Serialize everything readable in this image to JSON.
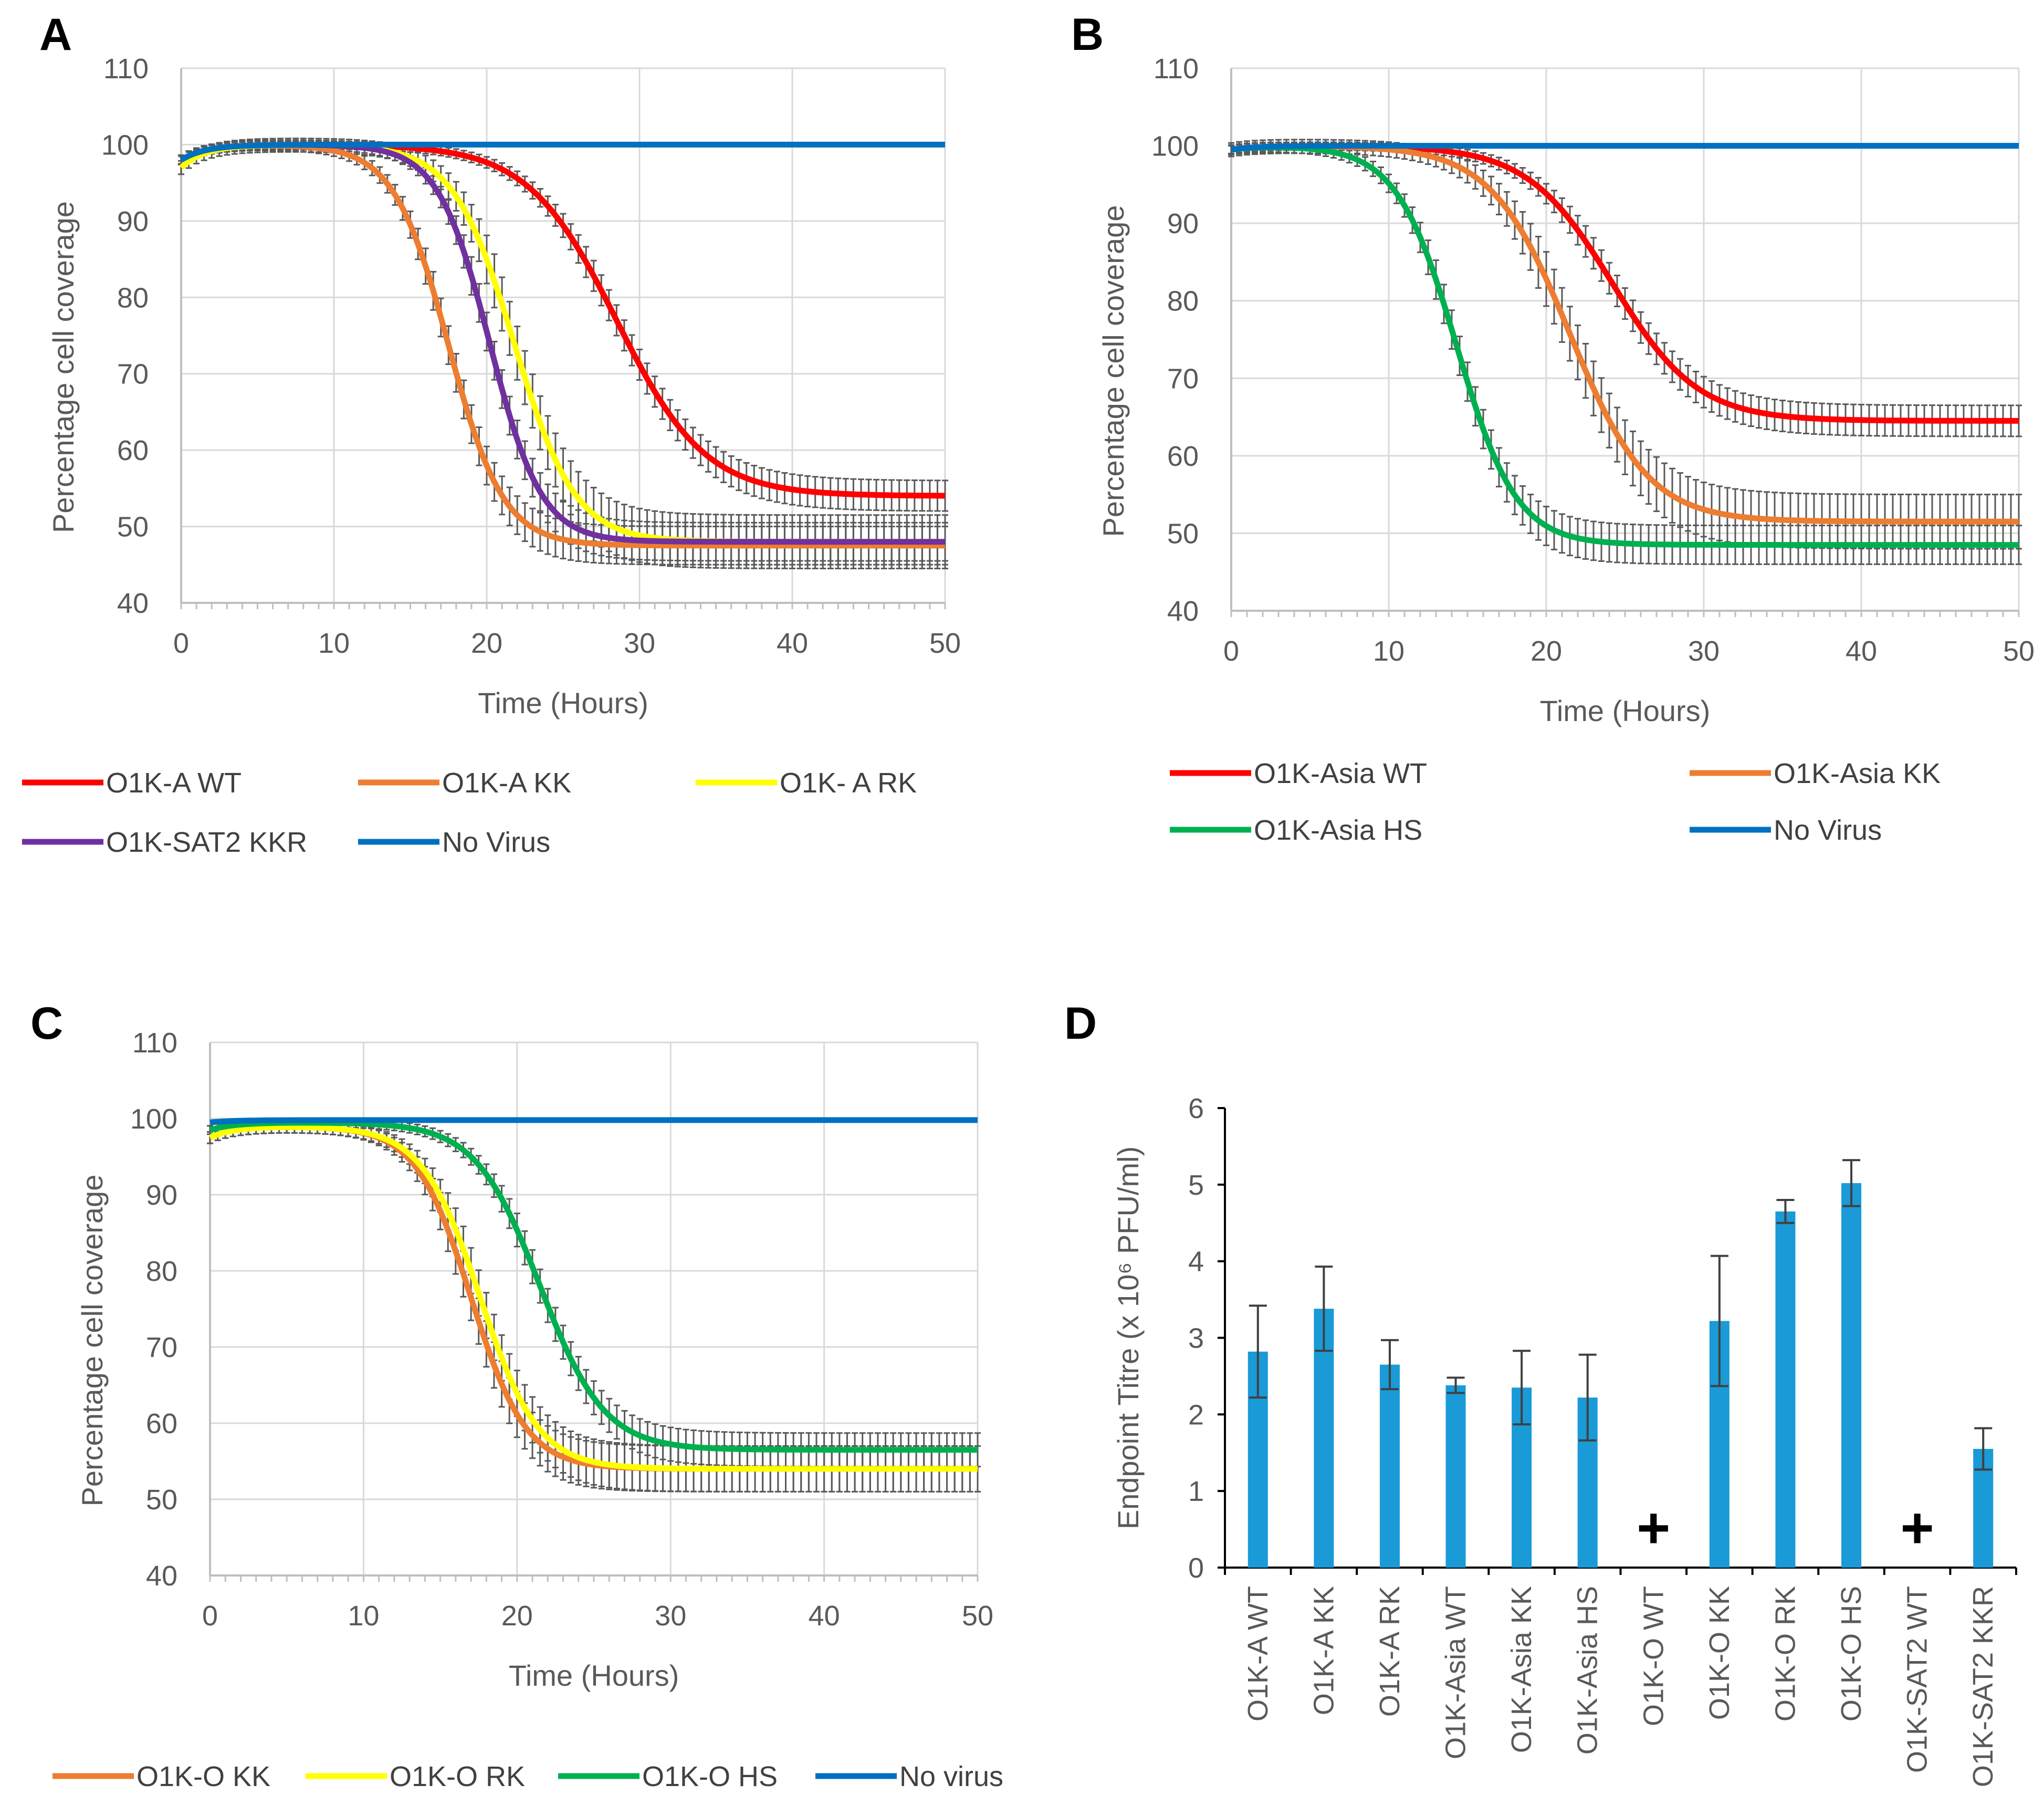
{
  "chart_data": [
    {
      "panel": "A",
      "type": "line",
      "xlabel": "Time  (Hours)",
      "ylabel": "Percentage cell coverage",
      "xlim": [
        0,
        50
      ],
      "ylim": [
        40,
        110
      ],
      "xticks": [
        0,
        10,
        20,
        30,
        40,
        50
      ],
      "yticks": [
        40,
        50,
        60,
        70,
        80,
        90,
        100,
        110
      ],
      "grid": true,
      "legend_position": "bottom",
      "series": [
        {
          "name": "O1K-A WT",
          "color": "#ff0000",
          "start": 98,
          "plateau": 100,
          "final": 54,
          "midpoint": 28.5,
          "width": 2.9,
          "err": 2.0
        },
        {
          "name": "O1K-A KK",
          "color": "#ed7d31",
          "start": 98,
          "plateau": 100,
          "final": 47.5,
          "midpoint": 17.5,
          "width": 1.8,
          "err": 2.5
        },
        {
          "name": "O1K- A RK",
          "color": "#ffff00",
          "start": 97,
          "plateau": 100,
          "final": 48,
          "midpoint": 21.8,
          "width": 2.0,
          "err": 3.5
        },
        {
          "name": "O1K-SAT2 KKR",
          "color": "#7030a0",
          "start": 98,
          "plateau": 100,
          "final": 48,
          "midpoint": 20.2,
          "width": 1.7,
          "err": 2.5
        },
        {
          "name": "No Virus",
          "color": "#0070c0",
          "start": 98,
          "plateau": 100,
          "final": 100,
          "midpoint": 25,
          "width": 3,
          "err": 0
        }
      ]
    },
    {
      "panel": "B",
      "type": "line",
      "xlabel": "Time  (Hours)",
      "ylabel": "Percentage cell coverage",
      "xlim": [
        0,
        50
      ],
      "ylim": [
        40,
        110
      ],
      "xticks": [
        0,
        10,
        20,
        30,
        40,
        50
      ],
      "yticks": [
        40,
        50,
        60,
        70,
        80,
        90,
        100,
        110
      ],
      "grid": true,
      "legend_position": "bottom",
      "series": [
        {
          "name": "O1K-Asia WT",
          "color": "#ff0000",
          "start": 99.5,
          "plateau": 100,
          "final": 64.5,
          "midpoint": 24.2,
          "width": 2.7,
          "err": 2.0
        },
        {
          "name": "O1K-Asia KK",
          "color": "#ed7d31",
          "start": 99.5,
          "plateau": 100,
          "final": 51.5,
          "midpoint": 21.5,
          "width": 2.5,
          "err": 3.5
        },
        {
          "name": "O1K-Asia HS",
          "color": "#00b050",
          "start": 99.5,
          "plateau": 100,
          "final": 48.5,
          "midpoint": 14.3,
          "width": 1.9,
          "err": 2.5
        },
        {
          "name": "No Virus",
          "color": "#0070c0",
          "start": 99.5,
          "plateau": 100,
          "final": 100,
          "midpoint": 25,
          "width": 3,
          "err": 0
        }
      ]
    },
    {
      "panel": "C",
      "type": "line",
      "xlabel": "Time  (Hours)",
      "ylabel": "Percentage cell coverage",
      "xlim": [
        0,
        50
      ],
      "ylim": [
        40,
        110
      ],
      "xticks": [
        0,
        10,
        20,
        30,
        40,
        50
      ],
      "yticks": [
        40,
        50,
        60,
        70,
        80,
        90,
        100,
        110
      ],
      "grid": true,
      "legend_position": "bottom",
      "series": [
        {
          "name": "O1K-O KK",
          "color": "#ed7d31",
          "start": 97.5,
          "plateau": 99,
          "final": 54,
          "midpoint": 17.0,
          "width": 1.8,
          "err": 3.0
        },
        {
          "name": "O1K-O RK",
          "color": "#ffff00",
          "start": 97.5,
          "plateau": 99,
          "final": 54,
          "midpoint": 17.6,
          "width": 1.9,
          "err": 3.0
        },
        {
          "name": "O1K-O HS",
          "color": "#00b050",
          "start": 98.5,
          "plateau": 99.5,
          "final": 56.5,
          "midpoint": 21.5,
          "width": 2.1,
          "err": 2.2
        },
        {
          "name": "No virus",
          "color": "#0070c0",
          "start": 99.5,
          "plateau": 99.8,
          "final": 99.8,
          "midpoint": 25,
          "width": 3,
          "err": 0
        }
      ]
    },
    {
      "panel": "D",
      "type": "bar",
      "xlabel": "",
      "ylabel": "Endpoint Titre (x 10⁶ PFU/ml)",
      "ylim": [
        0,
        6
      ],
      "yticks": [
        0,
        1,
        2,
        3,
        4,
        5,
        6
      ],
      "grid": false,
      "color": "#1a9ad6",
      "categories": [
        "O1K-A WT",
        "O1K-A KK",
        "O1K-A RK",
        "O1K-Asia WT",
        "O1K-Asia KK",
        "O1K-Asia HS",
        "O1K-O WT",
        "O1K-O KK",
        "O1K-O RK",
        "O1K-O HS",
        "O1K-SAT2 WT",
        "O1K-SAT2 KKR"
      ],
      "values": [
        2.82,
        3.38,
        2.65,
        2.38,
        2.35,
        2.22,
        null,
        3.22,
        4.65,
        5.02,
        null,
        1.55
      ],
      "errors": [
        0.6,
        0.55,
        0.32,
        0.1,
        0.48,
        0.56,
        null,
        0.85,
        0.15,
        0.3,
        null,
        0.27
      ],
      "markers": [
        "",
        "",
        "",
        "",
        "",
        "",
        "+",
        "",
        "",
        "",
        "+",
        ""
      ]
    }
  ],
  "panel_labels": {
    "a": "A",
    "b": "B",
    "c": "C",
    "d": "D"
  }
}
